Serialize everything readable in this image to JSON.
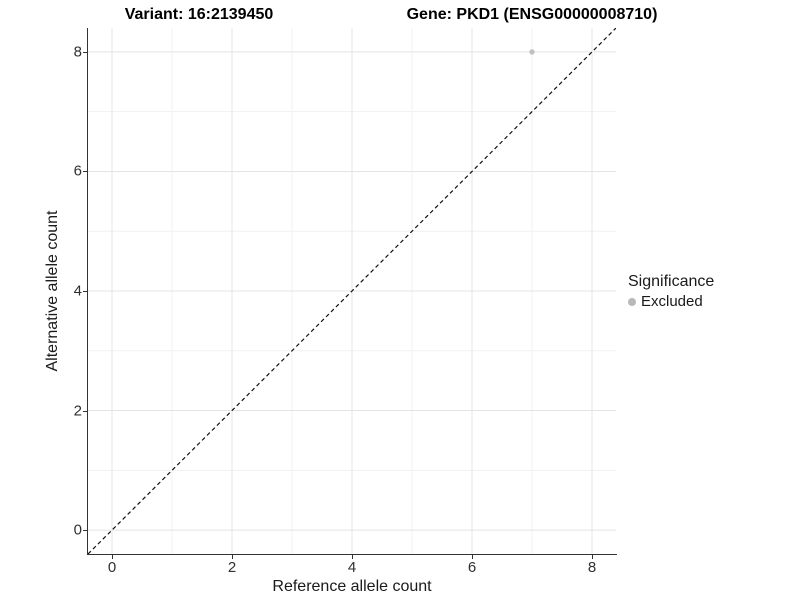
{
  "titles": {
    "left": "Variant: 16:2139450",
    "right": "Gene: PKD1 (ENSG00000008710)"
  },
  "chart_data": {
    "type": "scatter",
    "xlabel": "Reference allele count",
    "ylabel": "Alternative allele count",
    "xlim": [
      -0.4,
      8.4
    ],
    "ylim": [
      -0.4,
      8.4
    ],
    "x_ticks": [
      0,
      2,
      4,
      6,
      8
    ],
    "y_ticks": [
      0,
      2,
      4,
      6,
      8
    ],
    "x_minor": [
      1,
      3,
      5,
      7
    ],
    "y_minor": [
      1,
      3,
      5,
      7
    ],
    "grid": "major+minor",
    "series": [
      {
        "name": "Excluded",
        "color": "#c0c0c0",
        "points": [
          {
            "x": 7,
            "y": 8
          }
        ]
      }
    ],
    "reference_line": {
      "type": "identity",
      "style": "dashed",
      "color": "#111111"
    },
    "legend": {
      "title": "Significance",
      "position": "right",
      "items": [
        {
          "label": "Excluded",
          "color": "#b8b8b8"
        }
      ]
    }
  },
  "colors": {
    "background": "#ffffff",
    "axis_line": "#333333",
    "grid_major": "#e4e4e4",
    "grid_minor": "#f1f1f1",
    "tick_text": "#303030",
    "title_text": "#000000"
  }
}
